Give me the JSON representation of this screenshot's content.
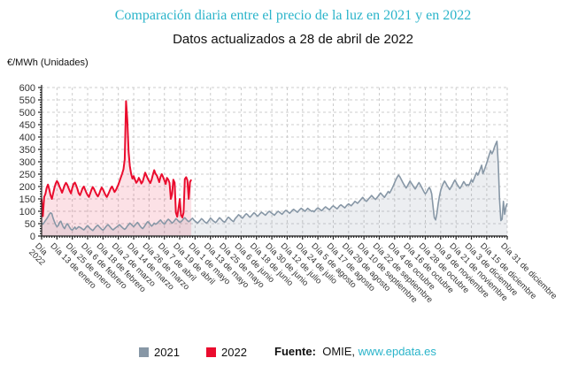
{
  "header": {
    "title": "Comparación diaria entre el precio de la luz en 2021 y en 2022",
    "subtitle": "Datos actualizados a 28 de abril de 2022"
  },
  "y_axis": {
    "unit_label": "€/MWh (Unidades)"
  },
  "legend": {
    "items": [
      {
        "label": "2021",
        "color": "#8797a6"
      },
      {
        "label": "2022",
        "color": "#ea0c2e"
      }
    ]
  },
  "footer": {
    "source_label": "Fuente:",
    "source_name": "OMIE,",
    "link": "www.epdata.es"
  },
  "colors": {
    "title": "#2ab4ca",
    "grid": "#cccccc",
    "axis": "#222222",
    "tick_text": "#333333",
    "series_2021": "#8797a6",
    "series_2022": "#ea0c2e",
    "area_2021": "rgba(135,151,166,0.16)",
    "area_2022": "rgba(234,12,46,0.12)",
    "link": "#2ab4ca"
  },
  "chart_data": {
    "type": "line",
    "title": "Comparación diaria entre el precio de la luz en 2021 y en 2022",
    "subtitle": "Datos actualizados a 28 de abril de 2022",
    "ylabel": "€/MWh (Unidades)",
    "ylim": [
      0,
      600
    ],
    "y_ticks": [
      0,
      50,
      100,
      150,
      200,
      250,
      300,
      350,
      400,
      450,
      500,
      550,
      600
    ],
    "x_unit": "día del año (1 = 1 de enero)",
    "grid": "dashed",
    "legend_position": "bottom",
    "x_ticks": [
      {
        "day": 1,
        "lines": [
          "Día",
          "2022"
        ]
      },
      {
        "day": 13,
        "lines": [
          "Día 13 de enero"
        ]
      },
      {
        "day": 25,
        "lines": [
          "Día 25 de enero"
        ]
      },
      {
        "day": 37,
        "lines": [
          "Día 6 de febrero"
        ]
      },
      {
        "day": 49,
        "lines": [
          "Día 18 de febrero"
        ]
      },
      {
        "day": 61,
        "lines": [
          "Día 2 de marzo"
        ]
      },
      {
        "day": 73,
        "lines": [
          "Día 14 de marzo"
        ]
      },
      {
        "day": 85,
        "lines": [
          "Día 26 de marzo"
        ]
      },
      {
        "day": 97,
        "lines": [
          "Día 7 de abril"
        ]
      },
      {
        "day": 109,
        "lines": [
          "Día 19 de abril"
        ]
      },
      {
        "day": 121,
        "lines": [
          "Día 1 de mayo"
        ]
      },
      {
        "day": 133,
        "lines": [
          "Día 13 de mayo"
        ]
      },
      {
        "day": 145,
        "lines": [
          "Día 25 de mayo"
        ]
      },
      {
        "day": 157,
        "lines": [
          "Día 6 de junio"
        ]
      },
      {
        "day": 169,
        "lines": [
          "Día 18 de junio"
        ]
      },
      {
        "day": 181,
        "lines": [
          "Día 30 de junio"
        ]
      },
      {
        "day": 193,
        "lines": [
          "Día 12 de julio"
        ]
      },
      {
        "day": 205,
        "lines": [
          "Día 24 de julio"
        ]
      },
      {
        "day": 217,
        "lines": [
          "Día 5 de agosto"
        ]
      },
      {
        "day": 229,
        "lines": [
          "Día 17 de agosto"
        ]
      },
      {
        "day": 241,
        "lines": [
          "Día 29 de agosto"
        ]
      },
      {
        "day": 253,
        "lines": [
          "Día 10 de septiembre"
        ]
      },
      {
        "day": 265,
        "lines": [
          "Día 22 de septiembre"
        ]
      },
      {
        "day": 277,
        "lines": [
          "Día 4 de octubre"
        ]
      },
      {
        "day": 289,
        "lines": [
          "Día 16 de octubre"
        ]
      },
      {
        "day": 301,
        "lines": [
          "Día 28 de octubre"
        ]
      },
      {
        "day": 313,
        "lines": [
          "Día 9 de noviembre"
        ]
      },
      {
        "day": 325,
        "lines": [
          "Día 21 de noviembre"
        ]
      },
      {
        "day": 337,
        "lines": [
          "Día 3 de diciembre"
        ]
      },
      {
        "day": 349,
        "lines": [
          "Día 15 de diciembre"
        ]
      },
      {
        "day": 365,
        "lines": [
          "Día 31 de diciembre"
        ]
      }
    ],
    "series": [
      {
        "name": "2021",
        "color": "#8797a6",
        "start_day": 1,
        "values": [
          52,
          48,
          55,
          62,
          70,
          78,
          88,
          94,
          90,
          72,
          58,
          46,
          38,
          42,
          55,
          60,
          48,
          36,
          30,
          42,
          50,
          44,
          34,
          27,
          24,
          30,
          36,
          28,
          33,
          38,
          35,
          32,
          28,
          25,
          30,
          38,
          42,
          36,
          30,
          26,
          22,
          28,
          35,
          40,
          44,
          38,
          32,
          27,
          24,
          29,
          36,
          42,
          46,
          40,
          34,
          28,
          25,
          30,
          34,
          38,
          42,
          46,
          40,
          35,
          30,
          27,
          32,
          40,
          46,
          52,
          48,
          42,
          38,
          44,
          50,
          55,
          48,
          40,
          34,
          30,
          36,
          44,
          52,
          58,
          54,
          46,
          40,
          45,
          52,
          48,
          50,
          55,
          60,
          65,
          58,
          52,
          48,
          55,
          62,
          68,
          64,
          58,
          52,
          56,
          63,
          70,
          66,
          60,
          55,
          58,
          64,
          70,
          74,
          68,
          62,
          58,
          62,
          68,
          72,
          65,
          60,
          56,
          52,
          58,
          64,
          70,
          66,
          60,
          55,
          52,
          58,
          65,
          72,
          68,
          62,
          58,
          54,
          60,
          67,
          74,
          70,
          64,
          59,
          56,
          62,
          70,
          76,
          72,
          66,
          62,
          58,
          68,
          74,
          80,
          86,
          82,
          76,
          72,
          78,
          85,
          90,
          86,
          80,
          76,
          82,
          88,
          94,
          90,
          84,
          80,
          86,
          92,
          96,
          92,
          88,
          84,
          90,
          96,
          100,
          96,
          92,
          88,
          84,
          90,
          96,
          100,
          96,
          92,
          88,
          94,
          100,
          104,
          100,
          96,
          92,
          98,
          104,
          108,
          104,
          100,
          96,
          102,
          108,
          112,
          108,
          104,
          100,
          106,
          112,
          108,
          104,
          100,
          102,
          98,
          104,
          110,
          114,
          110,
          106,
          102,
          108,
          114,
          118,
          114,
          110,
          106,
          112,
          118,
          122,
          118,
          114,
          110,
          116,
          122,
          126,
          122,
          118,
          114,
          120,
          126,
          130,
          126,
          122,
          128,
          134,
          140,
          136,
          132,
          138,
          144,
          150,
          156,
          150,
          144,
          140,
          146,
          152,
          158,
          164,
          158,
          152,
          148,
          154,
          160,
          168,
          174,
          168,
          162,
          156,
          164,
          172,
          180,
          174,
          182,
          192,
          204,
          216,
          228,
          238,
          246,
          240,
          230,
          220,
          210,
          202,
          194,
          202,
          212,
          222,
          214,
          206,
          198,
          190,
          198,
          208,
          216,
          208,
          198,
          188,
          178,
          170,
          178,
          188,
          196,
          188,
          170,
          120,
          75,
          65,
          90,
          130,
          160,
          185,
          200,
          212,
          222,
          214,
          204,
          196,
          188,
          196,
          206,
          216,
          226,
          218,
          208,
          200,
          192,
          200,
          210,
          220,
          212,
          204,
          208,
          205,
          215,
          228,
          218,
          230,
          244,
          256,
          246,
          258,
          272,
          286,
          252,
          265,
          280,
          296,
          312,
          330,
          345,
          332,
          342,
          358,
          372,
          383,
          290,
          150,
          62,
          68,
          140,
          88,
          120,
          132
        ]
      },
      {
        "name": "2022",
        "color": "#ea0c2e",
        "start_day": 1,
        "values": [
          148,
          80,
          158,
          170,
          196,
          208,
          188,
          165,
          150,
          172,
          195,
          212,
          222,
          214,
          200,
          188,
          175,
          190,
          205,
          215,
          208,
          195,
          182,
          172,
          195,
          210,
          216,
          205,
          190,
          172,
          165,
          178,
          192,
          200,
          188,
          175,
          165,
          158,
          172,
          188,
          198,
          190,
          178,
          168,
          160,
          170,
          185,
          196,
          188,
          176,
          165,
          158,
          168,
          180,
          192,
          200,
          190,
          178,
          185,
          196,
          208,
          222,
          238,
          252,
          270,
          310,
          545,
          470,
          340,
          282,
          250,
          232,
          242,
          228,
          215,
          222,
          235,
          225,
          212,
          220,
          238,
          256,
          244,
          232,
          222,
          214,
          228,
          248,
          266,
          252,
          245,
          232,
          218,
          240,
          250,
          238,
          225,
          210,
          235,
          228,
          215,
          150,
          170,
          228,
          215,
          95,
          78,
          110,
          150,
          85,
          75,
          95,
          230,
          238,
          225,
          150,
          218,
          228
        ]
      }
    ]
  }
}
